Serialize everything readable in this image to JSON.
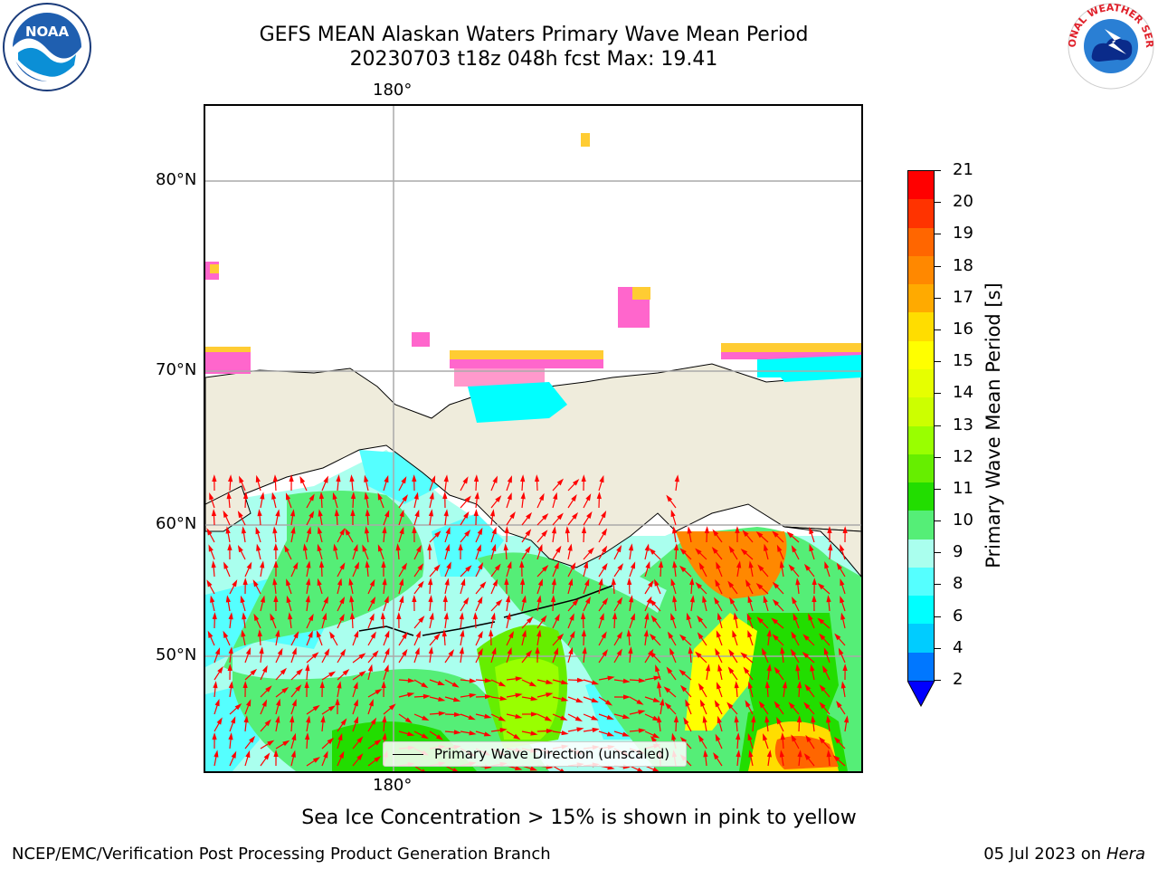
{
  "title": {
    "line1": "GEFS MEAN Alaskan Waters Primary Wave Mean Period",
    "line2": "20230703 t18z 048h fcst   Max: 19.41"
  },
  "map": {
    "lon_label_top": "180°",
    "lon_label_bottom": "180°",
    "lat_labels": [
      "80°N",
      "70°N",
      "60°N",
      "50°N"
    ],
    "legend_label": "Primary Wave Direction (unscaled)",
    "land_color": "#efecdc",
    "ocean_white": "#ffffff"
  },
  "colorbar": {
    "title": "Primary Wave Mean Period [s]",
    "ticks": [
      "21",
      "20",
      "19",
      "18",
      "17",
      "16",
      "15",
      "14",
      "13",
      "12",
      "11",
      "10",
      "9",
      "8",
      "6",
      "4",
      "2"
    ],
    "colors": [
      "#ff0000",
      "#ff3300",
      "#ff6600",
      "#ff8800",
      "#ffaa00",
      "#ffdd00",
      "#ffff00",
      "#e6ff00",
      "#ccff00",
      "#99ff00",
      "#66ee00",
      "#22dd00",
      "#55ee77",
      "#aaffee",
      "#55ffff",
      "#00ffff",
      "#00ccff",
      "#0077ff"
    ],
    "extend_color": "#0000ff"
  },
  "note": "Sea Ice Concentration > 15% is shown in pink to yellow",
  "footer": {
    "left": "NCEP/EMC/Verification Post Processing Product Generation Branch",
    "date": "05 Jul 2023 on ",
    "machine": "Hera"
  },
  "logos": {
    "noaa": "NOAA",
    "nws": "NATIONAL WEATHER SERVICE"
  }
}
